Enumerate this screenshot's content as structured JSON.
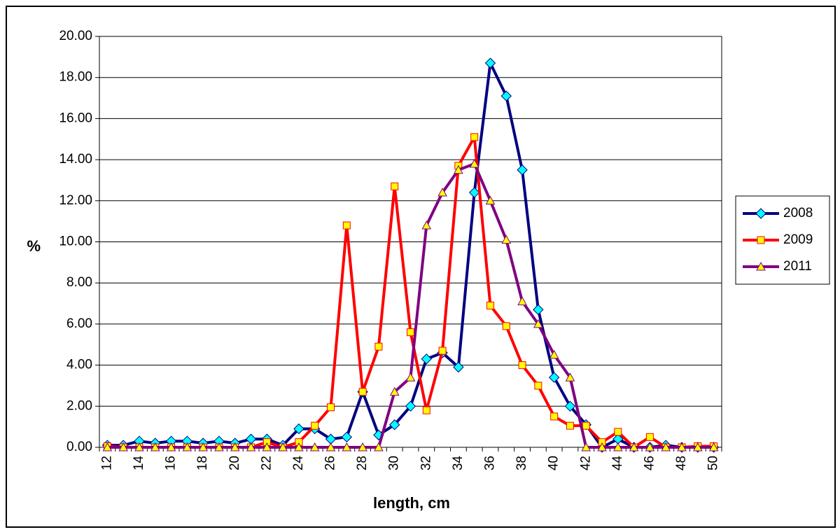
{
  "chart_data": {
    "type": "line",
    "title": "",
    "xlabel": "length, cm",
    "ylabel": "%",
    "x": [
      12,
      13,
      14,
      15,
      16,
      17,
      18,
      19,
      20,
      21,
      22,
      23,
      24,
      25,
      26,
      27,
      28,
      29,
      30,
      31,
      32,
      33,
      34,
      35,
      36,
      37,
      38,
      39,
      40,
      41,
      42,
      43,
      44,
      45,
      46,
      47,
      48,
      49,
      50
    ],
    "x_tick_labels": [
      "12",
      "14",
      "16",
      "18",
      "20",
      "22",
      "24",
      "26",
      "28",
      "30",
      "32",
      "34",
      "36",
      "38",
      "40",
      "42",
      "44",
      "46",
      "48",
      "50"
    ],
    "y_tick_labels": [
      "0.00",
      "2.00",
      "4.00",
      "6.00",
      "8.00",
      "10.00",
      "12.00",
      "14.00",
      "16.00",
      "18.00",
      "20.00"
    ],
    "ylim": [
      0,
      20
    ],
    "grid": "horizontal",
    "legend_position": "right",
    "series": [
      {
        "name": "2008",
        "color": "#000080",
        "marker": "diamond",
        "marker_fill": "#00FFFF",
        "values": [
          0.1,
          0.1,
          0.3,
          0.2,
          0.3,
          0.3,
          0.2,
          0.3,
          0.2,
          0.4,
          0.4,
          0.1,
          0.9,
          0.9,
          0.4,
          0.5,
          2.7,
          0.6,
          1.1,
          2.0,
          4.3,
          4.6,
          3.9,
          12.4,
          18.7,
          17.1,
          13.5,
          6.7,
          3.4,
          2.0,
          1.1,
          0.0,
          0.4,
          0.0,
          0.0,
          0.1,
          0.0,
          0.0,
          0.0
        ]
      },
      {
        "name": "2009",
        "color": "#FF0000",
        "marker": "square",
        "marker_fill": "#FFFF00",
        "values": [
          0.05,
          0.0,
          0.0,
          0.0,
          0.0,
          0.0,
          0.0,
          0.0,
          0.0,
          0.0,
          0.25,
          0.0,
          0.25,
          1.05,
          1.95,
          10.8,
          2.7,
          4.9,
          12.7,
          5.6,
          1.8,
          4.7,
          13.7,
          15.1,
          6.9,
          5.9,
          4.0,
          3.0,
          1.5,
          1.05,
          1.05,
          0.25,
          0.75,
          0.0,
          0.5,
          0.0,
          0.0,
          0.05,
          0.05
        ]
      },
      {
        "name": "2011",
        "color": "#800080",
        "marker": "triangle",
        "marker_fill": "#FFFF00",
        "values": [
          0.0,
          0.0,
          0.0,
          0.0,
          0.0,
          0.0,
          0.0,
          0.0,
          0.0,
          0.0,
          0.0,
          0.0,
          0.0,
          0.0,
          0.0,
          0.0,
          0.0,
          0.0,
          2.7,
          3.4,
          10.8,
          12.4,
          13.5,
          13.8,
          12.0,
          10.1,
          7.1,
          6.0,
          4.5,
          3.4,
          0.0,
          0.0,
          0.0,
          0.0,
          0.0,
          0.0,
          0.0,
          0.0,
          0.0
        ]
      }
    ]
  }
}
